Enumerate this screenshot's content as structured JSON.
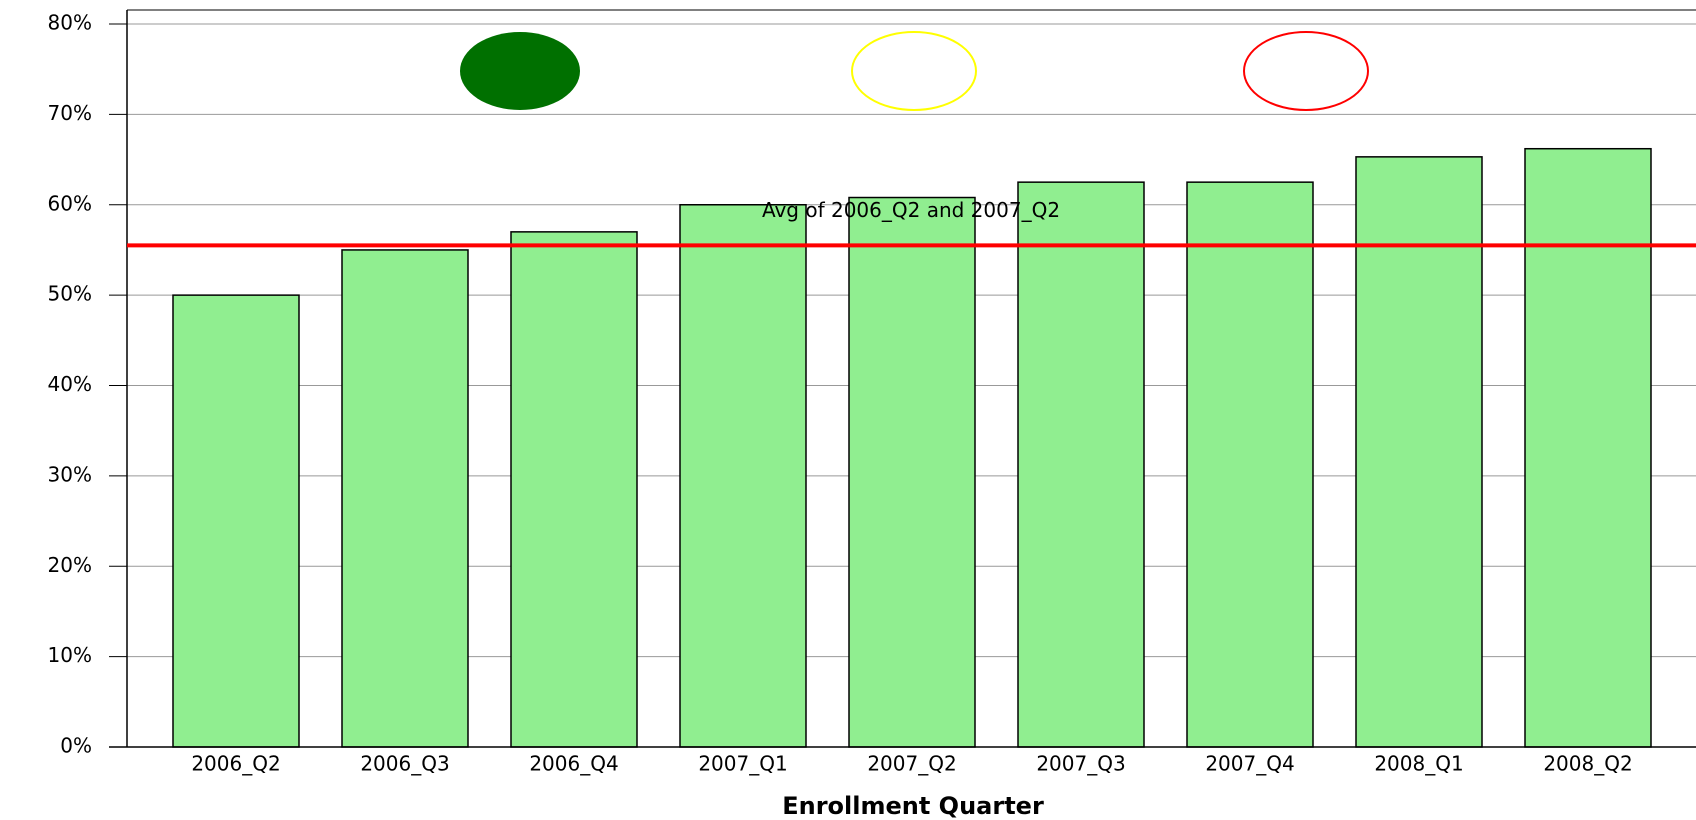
{
  "chart_data": {
    "type": "bar",
    "x_label": "Enrollment Quarter",
    "categories": [
      "2006_Q2",
      "2006_Q3",
      "2006_Q4",
      "2007_Q1",
      "2007_Q2",
      "2007_Q3",
      "2007_Q4",
      "2008_Q1",
      "2008_Q2"
    ],
    "values": [
      50,
      55,
      57,
      60,
      60.8,
      62.5,
      62.5,
      65.3,
      66.2
    ],
    "color": "#90ee90",
    "ylim": [
      0,
      80
    ],
    "yticks": [
      {
        "value": 0,
        "label": "0%"
      },
      {
        "value": 10,
        "label": "10%"
      },
      {
        "value": 20,
        "label": "20%"
      },
      {
        "value": 30,
        "label": "30%"
      },
      {
        "value": 40,
        "label": "40%"
      },
      {
        "value": 50,
        "label": "50%"
      },
      {
        "value": 60,
        "label": "60%"
      },
      {
        "value": 70,
        "label": "70%"
      },
      {
        "value": 80,
        "label": "80%"
      }
    ],
    "grid": true,
    "reference_line": {
      "value": 55.5,
      "label": "Avg of 2006_Q2 and 2007_Q2",
      "color": "#ff0000"
    }
  }
}
